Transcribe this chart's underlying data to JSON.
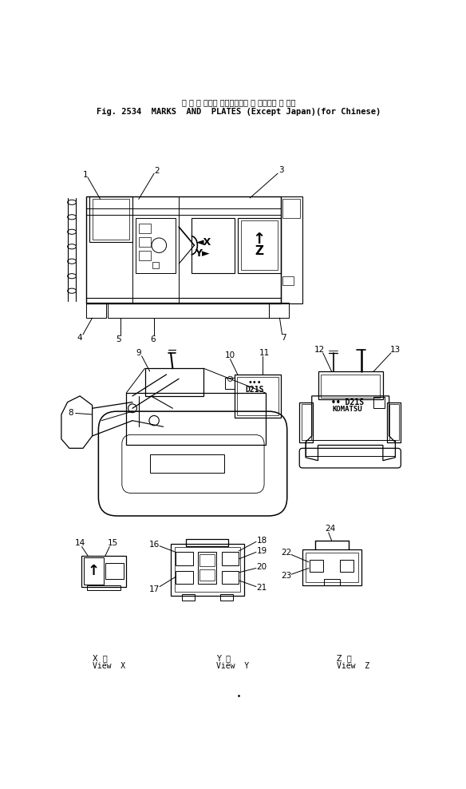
{
  "bg_color": "#ffffff",
  "text_color": "#000000",
  "title_jp": "マ ー ク および プレート（海 外 向）（中 国 向）",
  "title_en": "Fig. 2534  MARKS  AND  PLATES (Except Japan)(for Chinese)",
  "view_x": "X  視\nView  X",
  "view_y": "Y  視\nView  Y",
  "view_z": "Z  視\nView  Z"
}
